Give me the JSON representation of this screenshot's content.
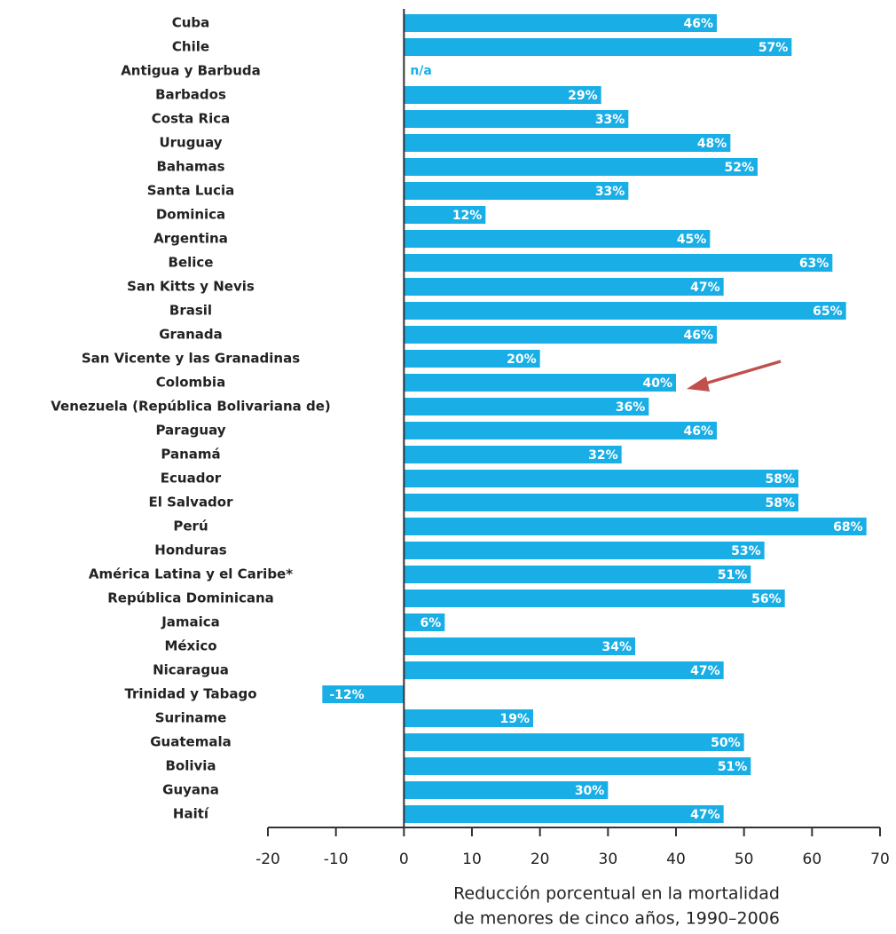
{
  "chart_data": {
    "type": "hbar",
    "categories": [
      "Cuba",
      "Chile",
      "Antigua y Barbuda",
      "Barbados",
      "Costa Rica",
      "Uruguay",
      "Bahamas",
      "Santa Lucia",
      "Dominica",
      "Argentina",
      "Belice",
      "San Kitts y Nevis",
      "Brasil",
      "Granada",
      "San Vicente y las Granadinas",
      "Colombia",
      "Venezuela (República Bolivariana de)",
      "Paraguay",
      "Panamá",
      "Ecuador",
      "El Salvador",
      "Perú",
      "Honduras",
      "América Latina y el Caribe*",
      "República Dominicana",
      "Jamaica",
      "México",
      "Nicaragua",
      "Trinidad y Tabago",
      "Suriname",
      "Guatemala",
      "Bolivia",
      "Guyana",
      "Haití"
    ],
    "values": [
      46,
      57,
      null,
      29,
      33,
      48,
      52,
      33,
      12,
      45,
      63,
      47,
      65,
      46,
      20,
      40,
      36,
      46,
      32,
      58,
      58,
      68,
      53,
      51,
      56,
      6,
      34,
      47,
      -12,
      19,
      50,
      51,
      30,
      47
    ],
    "value_labels": [
      "46%",
      "57%",
      "n/a",
      "29%",
      "33%",
      "48%",
      "52%",
      "33%",
      "12%",
      "45%",
      "63%",
      "47%",
      "65%",
      "46%",
      "20%",
      "40%",
      "36%",
      "46%",
      "32%",
      "58%",
      "58%",
      "68%",
      "53%",
      "51%",
      "56%",
      "6%",
      "34%",
      "47%",
      "-12%",
      "19%",
      "50%",
      "51%",
      "30%",
      "47%"
    ],
    "color": "#1aaee6",
    "xlim": [
      -20,
      70
    ],
    "xticks": [
      -20,
      -10,
      0,
      10,
      20,
      30,
      40,
      50,
      60,
      70
    ],
    "xlabel": [
      "Reducción porcentual en la mortalidad",
      "de menores de cinco años, 1990–2006"
    ]
  }
}
